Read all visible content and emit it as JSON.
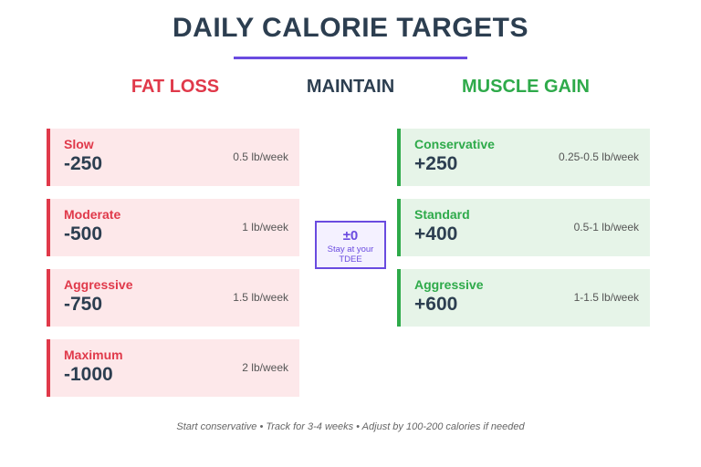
{
  "header": {
    "title": "DAILY CALORIE TARGETS"
  },
  "columns": {
    "fat_loss": "FAT LOSS",
    "maintain": "MAINTAIN",
    "muscle_gain": "MUSCLE GAIN"
  },
  "fat_loss": [
    {
      "name": "Slow",
      "value": "-250",
      "rate": "0.5 lb/week"
    },
    {
      "name": "Moderate",
      "value": "-500",
      "rate": "1 lb/week"
    },
    {
      "name": "Aggressive",
      "value": "-750",
      "rate": "1.5 lb/week"
    },
    {
      "name": "Maximum",
      "value": "-1000",
      "rate": "2 lb/week"
    }
  ],
  "maintain": {
    "value": "±0",
    "note": "Stay at your TDEE"
  },
  "muscle_gain": [
    {
      "name": "Conservative",
      "value": "+250",
      "rate": "0.25-0.5 lb/week"
    },
    {
      "name": "Standard",
      "value": "+400",
      "rate": "0.5-1 lb/week"
    },
    {
      "name": "Aggressive",
      "value": "+600",
      "rate": "1-1.5 lb/week"
    }
  ],
  "footer": "Start conservative • Track for 3-4 weeks • Adjust by 100-200 calories if needed"
}
